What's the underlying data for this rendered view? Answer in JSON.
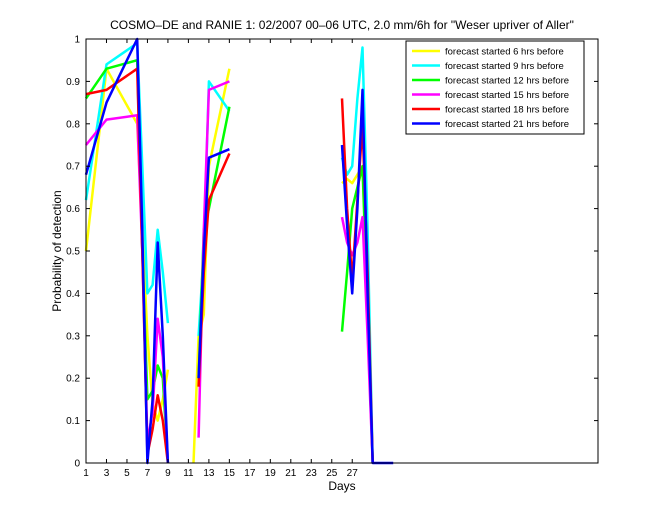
{
  "chart_data": {
    "type": "line",
    "title": "COSMO–DE and RANIE 1: 02/2007 00–06 UTC, 2.0 mm/6h for \"Weser upriver of Aller\"",
    "xlabel": "Days",
    "ylabel": "Probability of detection",
    "xlim": [
      1,
      51
    ],
    "ylim": [
      0,
      1
    ],
    "xticks": [
      1,
      3,
      5,
      7,
      9,
      11,
      13,
      15,
      17,
      19,
      21,
      23,
      25,
      27
    ],
    "yticks": [
      0,
      0.1,
      0.2,
      0.3,
      0.4,
      0.5,
      0.6,
      0.7,
      0.8,
      0.9,
      1
    ],
    "ytick_labels": [
      "0",
      "0.1",
      "0.2",
      "0.3",
      "0.4",
      "0.5",
      "0.6",
      "0.7",
      "0.8",
      "0.9",
      "1"
    ],
    "legend_position": "top-right",
    "series": [
      {
        "name": "forecast started 6 hrs before",
        "color": "#ffff00",
        "points": [
          [
            1,
            0.5
          ],
          [
            3,
            0.93
          ],
          [
            6,
            0.8
          ],
          [
            6.5,
            0.55
          ],
          [
            7,
            0.3
          ],
          [
            7.5,
            0.14
          ],
          [
            8,
            0.1
          ],
          [
            8.5,
            0.15
          ],
          [
            9,
            0.22
          ],
          [
            null,
            null
          ],
          [
            11.5,
            0.0
          ],
          [
            12,
            0.3
          ],
          [
            12.5,
            0.35
          ],
          [
            13,
            0.7
          ],
          [
            15,
            0.93
          ],
          [
            null,
            null
          ],
          [
            26,
            0.66
          ],
          [
            26.5,
            0.67
          ],
          [
            27,
            0.66
          ],
          [
            27.5,
            0.68
          ],
          [
            28,
            0.7
          ],
          [
            28.5,
            0.4
          ],
          [
            29,
            0.0
          ]
        ]
      },
      {
        "name": "forecast started 9 hrs before",
        "color": "#00ffff",
        "points": [
          [
            1,
            0.62
          ],
          [
            3,
            0.94
          ],
          [
            6,
            0.99
          ],
          [
            6.5,
            0.7
          ],
          [
            7,
            0.4
          ],
          [
            7.5,
            0.42
          ],
          [
            8,
            0.55
          ],
          [
            8.5,
            0.45
          ],
          [
            9,
            0.33
          ],
          [
            null,
            null
          ],
          [
            12,
            0.3
          ],
          [
            12.5,
            0.5
          ],
          [
            13,
            0.9
          ],
          [
            15,
            0.83
          ],
          [
            null,
            null
          ],
          [
            26,
            0.72
          ],
          [
            26.5,
            0.68
          ],
          [
            27,
            0.7
          ],
          [
            27.5,
            0.86
          ],
          [
            28,
            0.98
          ],
          [
            28.5,
            0.55
          ],
          [
            29,
            0.0
          ]
        ]
      },
      {
        "name": "forecast started 12 hrs before",
        "color": "#00ff00",
        "points": [
          [
            1,
            0.86
          ],
          [
            3,
            0.93
          ],
          [
            6,
            0.95
          ],
          [
            6.5,
            0.5
          ],
          [
            7,
            0.15
          ],
          [
            7.5,
            0.17
          ],
          [
            8,
            0.23
          ],
          [
            8.5,
            0.2
          ],
          [
            9,
            0.0
          ],
          [
            null,
            null
          ],
          [
            12,
            0.2
          ],
          [
            12.5,
            0.55
          ],
          [
            13,
            0.6
          ],
          [
            15,
            0.84
          ],
          [
            null,
            null
          ],
          [
            26,
            0.31
          ],
          [
            26.5,
            0.45
          ],
          [
            27,
            0.6
          ],
          [
            27.5,
            0.65
          ],
          [
            28,
            0.7
          ],
          [
            28.5,
            0.35
          ],
          [
            29,
            0.0
          ]
        ]
      },
      {
        "name": "forecast started 15 hrs before",
        "color": "#ff00ff",
        "points": [
          [
            1,
            0.75
          ],
          [
            3,
            0.81
          ],
          [
            6,
            0.82
          ],
          [
            6.5,
            0.5
          ],
          [
            7,
            0.05
          ],
          [
            7.5,
            0.12
          ],
          [
            8,
            0.34
          ],
          [
            8.5,
            0.25
          ],
          [
            9,
            0.0
          ],
          [
            null,
            null
          ],
          [
            12,
            0.06
          ],
          [
            12.5,
            0.55
          ],
          [
            13,
            0.88
          ],
          [
            15,
            0.9
          ],
          [
            null,
            null
          ],
          [
            26,
            0.58
          ],
          [
            26.5,
            0.52
          ],
          [
            27,
            0.49
          ],
          [
            27.5,
            0.52
          ],
          [
            28,
            0.58
          ],
          [
            28.5,
            0.3
          ],
          [
            29,
            0.0
          ]
        ]
      },
      {
        "name": "forecast started 18 hrs before",
        "color": "#ff0000",
        "points": [
          [
            1,
            0.87
          ],
          [
            3,
            0.88
          ],
          [
            6,
            0.93
          ],
          [
            6.5,
            0.5
          ],
          [
            7,
            0.02
          ],
          [
            7.5,
            0.08
          ],
          [
            8,
            0.16
          ],
          [
            8.5,
            0.1
          ],
          [
            9,
            0.0
          ],
          [
            null,
            null
          ],
          [
            12,
            0.18
          ],
          [
            12.5,
            0.45
          ],
          [
            13,
            0.62
          ],
          [
            15,
            0.73
          ],
          [
            null,
            null
          ],
          [
            26,
            0.86
          ],
          [
            26.5,
            0.6
          ],
          [
            27,
            0.43
          ],
          [
            27.5,
            0.62
          ],
          [
            28,
            0.8
          ],
          [
            28.5,
            0.45
          ],
          [
            29,
            0.0
          ]
        ]
      },
      {
        "name": "forecast started 21 hrs before",
        "color": "#0000ff",
        "points": [
          [
            1,
            0.68
          ],
          [
            3,
            0.85
          ],
          [
            6,
            1.0
          ],
          [
            6.5,
            0.55
          ],
          [
            7,
            0.0
          ],
          [
            7.5,
            0.15
          ],
          [
            8,
            0.52
          ],
          [
            8.5,
            0.3
          ],
          [
            9,
            0.0
          ],
          [
            null,
            null
          ],
          [
            12,
            0.2
          ],
          [
            12.5,
            0.5
          ],
          [
            13,
            0.72
          ],
          [
            15,
            0.74
          ],
          [
            null,
            null
          ],
          [
            26,
            0.75
          ],
          [
            26.5,
            0.56
          ],
          [
            27,
            0.4
          ],
          [
            27.5,
            0.6
          ],
          [
            28,
            0.88
          ],
          [
            28.5,
            0.4
          ],
          [
            29,
            0.0
          ],
          [
            31,
            0.0
          ]
        ]
      }
    ]
  }
}
